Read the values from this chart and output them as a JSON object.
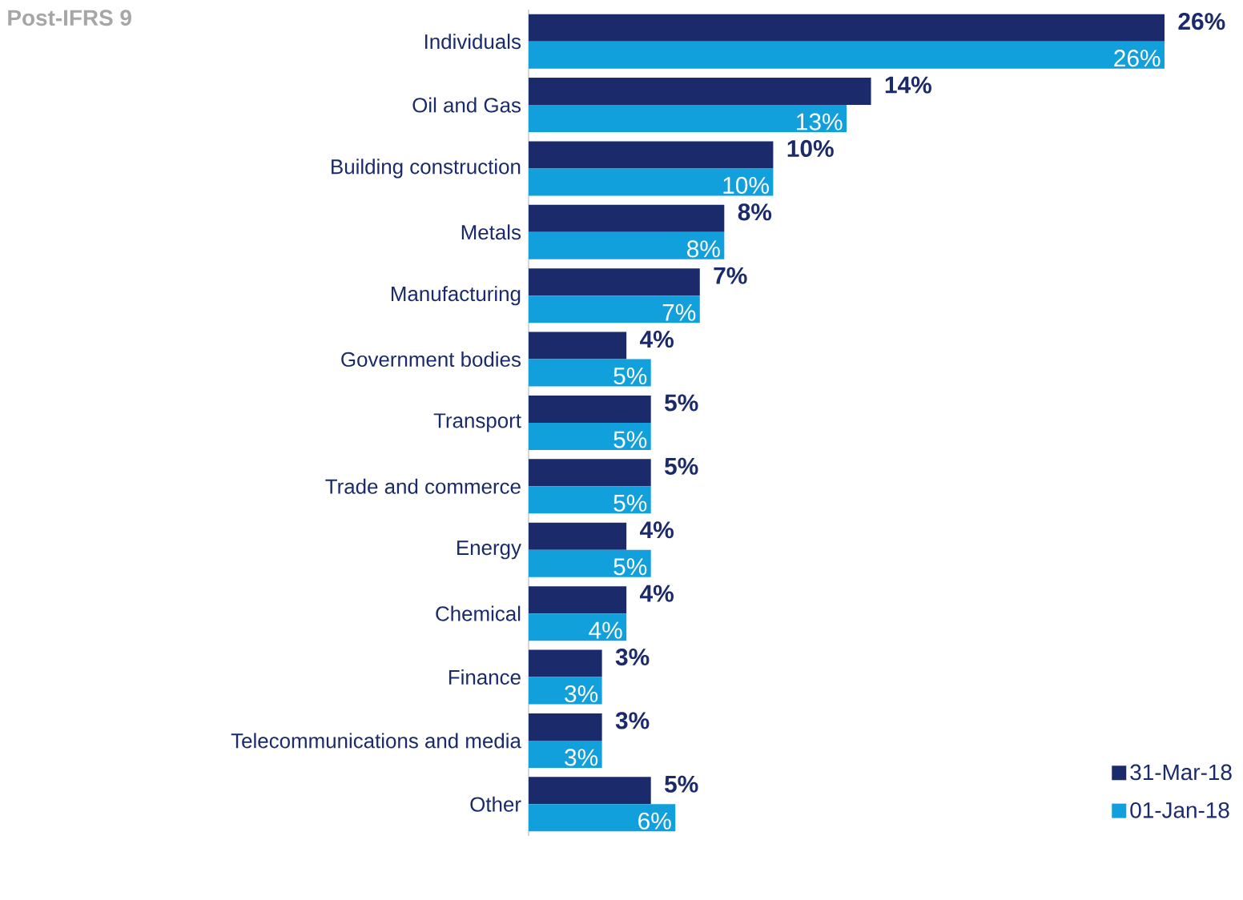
{
  "chart_data": {
    "type": "bar",
    "orientation": "horizontal",
    "title": "Post-IFRS 9",
    "categories": [
      "Individuals",
      "Oil and Gas",
      "Building construction",
      "Metals",
      "Manufacturing",
      "Government bodies",
      "Transport",
      "Trade and commerce",
      "Energy",
      "Chemical",
      "Finance",
      "Telecommunications and media",
      "Other"
    ],
    "series": [
      {
        "name": "31-Mar-18",
        "color": "#1b2a6b",
        "values": [
          26,
          14,
          10,
          8,
          7,
          4,
          5,
          5,
          4,
          4,
          3,
          3,
          5
        ],
        "value_labels": [
          "26%",
          "14%",
          "10%",
          "8%",
          "7%",
          "4%",
          "5%",
          "5%",
          "4%",
          "4%",
          "3%",
          "3%",
          "5%"
        ]
      },
      {
        "name": "01-Jan-18",
        "color": "#12a0dc",
        "values": [
          26,
          13,
          10,
          8,
          7,
          5,
          5,
          5,
          5,
          4,
          3,
          3,
          6
        ],
        "value_labels": [
          "26%",
          "13%",
          "10%",
          "8%",
          "7%",
          "5%",
          "5%",
          "5%",
          "5%",
          "4%",
          "3%",
          "3%",
          "6%"
        ]
      }
    ],
    "legend": "bottom right"
  }
}
